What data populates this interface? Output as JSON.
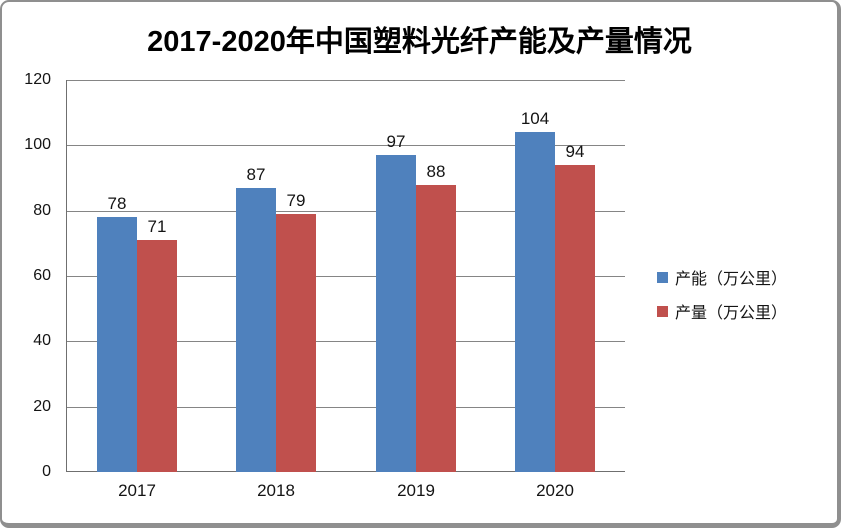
{
  "frame": {
    "background": "#ffffff",
    "border_color": "#8f8f8f"
  },
  "chart_data": {
    "type": "bar",
    "title": "2017-2020年中国塑料光纤产能及产量情况",
    "categories": [
      "2017",
      "2018",
      "2019",
      "2020"
    ],
    "series": [
      {
        "key": "capacity",
        "name": "产能（万公里）",
        "color": "#4F81BD",
        "values": [
          78,
          87,
          97,
          104
        ]
      },
      {
        "key": "production",
        "name": "产量（万公里）",
        "color": "#C0504D",
        "values": [
          71,
          79,
          88,
          94
        ]
      }
    ],
    "ylim": [
      0,
      120
    ],
    "yticks": [
      0,
      20,
      40,
      60,
      80,
      100,
      120
    ],
    "grid": true,
    "data_labels": true,
    "legend_position": "right",
    "xlabel": "",
    "ylabel": "",
    "styles": {
      "gridline_color": "#858585",
      "axis_line_color": "#6f6f6f",
      "text_color": "#141414"
    }
  }
}
